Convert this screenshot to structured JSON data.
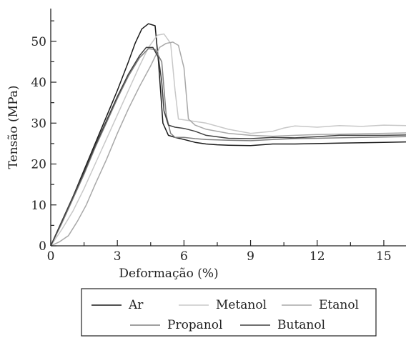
{
  "chart_data": {
    "type": "line",
    "xlabel": "Deformação (%)",
    "ylabel": "Tensão (MPa)",
    "xlim": [
      0,
      16
    ],
    "ylim": [
      0,
      58
    ],
    "xticks": [
      0,
      3,
      6,
      9,
      12,
      15
    ],
    "yticks": [
      0,
      10,
      20,
      30,
      40,
      50
    ],
    "grid": false,
    "legend_position": "bottom",
    "series": [
      {
        "name": "Ar",
        "color": "#1a1a1a",
        "points": [
          [
            0,
            0
          ],
          [
            0.5,
            6
          ],
          [
            1,
            12
          ],
          [
            1.5,
            18.5
          ],
          [
            2,
            25
          ],
          [
            2.5,
            31.5
          ],
          [
            3,
            38
          ],
          [
            3.5,
            45
          ],
          [
            3.8,
            49.5
          ],
          [
            4.1,
            53
          ],
          [
            4.4,
            54.3
          ],
          [
            4.7,
            53.8
          ],
          [
            4.85,
            45
          ],
          [
            5.05,
            30
          ],
          [
            5.3,
            27
          ],
          [
            5.6,
            26.5
          ],
          [
            6,
            26
          ],
          [
            6.5,
            25.3
          ],
          [
            7,
            24.9
          ],
          [
            7.5,
            24.7
          ],
          [
            8,
            24.6
          ],
          [
            9,
            24.5
          ],
          [
            10,
            24.9
          ],
          [
            11,
            24.9
          ],
          [
            12,
            25
          ],
          [
            13,
            25.1
          ],
          [
            14,
            25.2
          ],
          [
            15,
            25.3
          ],
          [
            16,
            25.4
          ]
        ]
      },
      {
        "name": "Metanol",
        "color": "#c8c8c8",
        "points": [
          [
            0,
            0
          ],
          [
            0.5,
            4
          ],
          [
            1,
            8.5
          ],
          [
            1.5,
            14
          ],
          [
            2,
            20
          ],
          [
            2.5,
            26
          ],
          [
            3,
            32
          ],
          [
            3.5,
            38
          ],
          [
            4,
            44
          ],
          [
            4.4,
            48.5
          ],
          [
            4.8,
            51.5
          ],
          [
            5.1,
            51.8
          ],
          [
            5.4,
            49.5
          ],
          [
            5.6,
            38
          ],
          [
            5.75,
            31
          ],
          [
            6,
            30.8
          ],
          [
            7,
            30
          ],
          [
            8,
            28.5
          ],
          [
            9,
            27.5
          ],
          [
            10,
            28
          ],
          [
            10.5,
            28.8
          ],
          [
            11,
            29.3
          ],
          [
            12,
            29
          ],
          [
            13,
            29.4
          ],
          [
            14,
            29.2
          ],
          [
            15,
            29.5
          ],
          [
            16,
            29.4
          ]
        ]
      },
      {
        "name": "Etanol",
        "color": "#a8a8a8",
        "points": [
          [
            0,
            0
          ],
          [
            0.4,
            1
          ],
          [
            0.8,
            2.5
          ],
          [
            1.2,
            6
          ],
          [
            1.6,
            10
          ],
          [
            2,
            15
          ],
          [
            2.5,
            21
          ],
          [
            3,
            27.5
          ],
          [
            3.5,
            33.5
          ],
          [
            4,
            39
          ],
          [
            4.5,
            44
          ],
          [
            4.9,
            48.5
          ],
          [
            5.2,
            49.5
          ],
          [
            5.5,
            49.8
          ],
          [
            5.75,
            49
          ],
          [
            6,
            43.5
          ],
          [
            6.2,
            31
          ],
          [
            6.5,
            29.5
          ],
          [
            7,
            28.5
          ],
          [
            8,
            27.5
          ],
          [
            9,
            27
          ],
          [
            10,
            26.8
          ],
          [
            11,
            27
          ],
          [
            12,
            27.2
          ],
          [
            13,
            27.3
          ],
          [
            14,
            27.4
          ],
          [
            15,
            27.5
          ],
          [
            16,
            27.6
          ]
        ]
      },
      {
        "name": "Propanol",
        "color": "#808080",
        "points": [
          [
            0,
            0
          ],
          [
            0.5,
            5.5
          ],
          [
            1,
            11.5
          ],
          [
            1.5,
            17.5
          ],
          [
            2,
            24
          ],
          [
            2.5,
            30
          ],
          [
            3,
            36
          ],
          [
            3.5,
            41.5
          ],
          [
            4,
            46
          ],
          [
            4.4,
            48.2
          ],
          [
            4.7,
            48
          ],
          [
            5,
            45
          ],
          [
            5.2,
            32
          ],
          [
            5.4,
            27.5
          ],
          [
            5.6,
            26.5
          ],
          [
            6,
            26.5
          ],
          [
            6.5,
            26.2
          ],
          [
            7,
            26
          ],
          [
            8,
            25.8
          ],
          [
            9,
            25.7
          ],
          [
            10,
            26
          ],
          [
            11,
            26.2
          ],
          [
            12,
            26.3
          ],
          [
            13,
            26.4
          ],
          [
            14,
            26.5
          ],
          [
            15,
            26.6
          ],
          [
            16,
            26.7
          ]
        ]
      },
      {
        "name": "Butanol",
        "color": "#404040",
        "points": [
          [
            0,
            0
          ],
          [
            0.5,
            6
          ],
          [
            1,
            12
          ],
          [
            1.5,
            18
          ],
          [
            2,
            24.5
          ],
          [
            2.5,
            30.5
          ],
          [
            3,
            36.5
          ],
          [
            3.5,
            42
          ],
          [
            4,
            46.5
          ],
          [
            4.3,
            48.5
          ],
          [
            4.6,
            48.5
          ],
          [
            4.85,
            46
          ],
          [
            5,
            40
          ],
          [
            5.1,
            33
          ],
          [
            5.3,
            29.5
          ],
          [
            5.6,
            29
          ],
          [
            6,
            28.7
          ],
          [
            6.5,
            28
          ],
          [
            7,
            27
          ],
          [
            8,
            26.3
          ],
          [
            9,
            26.2
          ],
          [
            10,
            26.5
          ],
          [
            11,
            26.4
          ],
          [
            12,
            26.7
          ],
          [
            13,
            27
          ],
          [
            14,
            27
          ],
          [
            15,
            27
          ],
          [
            16,
            27.1
          ]
        ]
      }
    ]
  }
}
